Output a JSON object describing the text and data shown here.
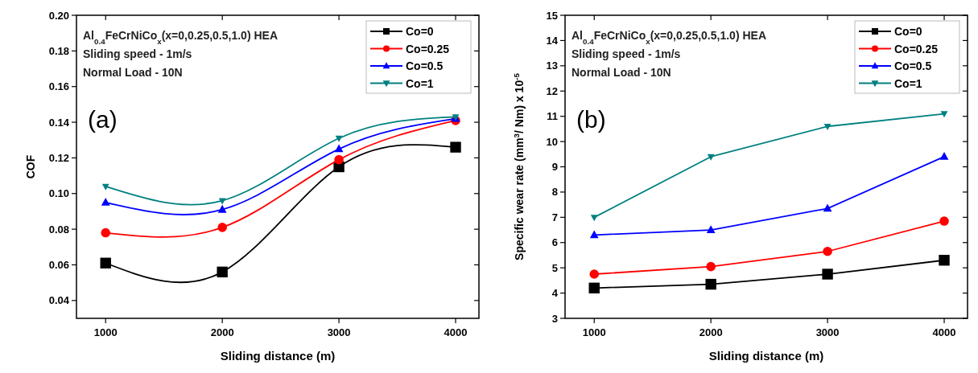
{
  "chart_data": [
    {
      "type": "line",
      "xlabel": "Sliding distance (m)",
      "ylabel": "COF",
      "x": [
        1000,
        2000,
        3000,
        4000
      ],
      "xlim": [
        750,
        4200
      ],
      "xticks": [
        1000,
        2000,
        3000,
        4000
      ],
      "ylim": [
        0.03,
        0.2
      ],
      "yticks": [
        {
          "value": 0.04,
          "label": "0.04"
        },
        {
          "value": 0.06,
          "label": "0.06"
        },
        {
          "value": 0.08,
          "label": "0.08"
        },
        {
          "value": 0.1,
          "label": "0.10"
        },
        {
          "value": 0.12,
          "label": "0.12"
        },
        {
          "value": 0.14,
          "label": "0.14"
        },
        {
          "value": 0.16,
          "label": "0.16"
        },
        {
          "value": 0.18,
          "label": "0.18"
        },
        {
          "value": 0.2,
          "label": "0.20"
        }
      ],
      "grid": false,
      "legend": "top right",
      "line_style": "solid",
      "series": [
        {
          "name": "Co=0",
          "color": "#000000",
          "marker": "square",
          "values": [
            0.061,
            0.056,
            0.115,
            0.126
          ]
        },
        {
          "name": "Co=0.25",
          "color": "#ff0000",
          "marker": "circle",
          "values": [
            0.078,
            0.081,
            0.119,
            0.141
          ]
        },
        {
          "name": "Co=0.5",
          "color": "#0000ff",
          "marker": "triangle",
          "values": [
            0.095,
            0.091,
            0.125,
            0.142
          ]
        },
        {
          "name": "Co=1",
          "color": "#008080",
          "marker": "triangle-down",
          "values": [
            0.104,
            0.096,
            0.131,
            0.143
          ]
        }
      ],
      "annotations": [
        "Al$_{0.4}$FeCrNiCo$_{x}$(x=0,0.25,0.5,1.0) HEA",
        "Sliding speed - 1m/s",
        "Normal Load - 10N",
        "(a)"
      ]
    },
    {
      "type": "line",
      "xlabel": "Sliding distance (m)",
      "ylabel": "Specific wear rate (mm$^{3}$/ Nm) x 10$^{-5}$",
      "x": [
        1000,
        2000,
        3000,
        4000
      ],
      "xlim": [
        750,
        4200
      ],
      "xticks": [
        1000,
        2000,
        3000,
        4000
      ],
      "ylim": [
        3,
        15
      ],
      "yticks": [
        3,
        4,
        5,
        6,
        7,
        8,
        9,
        10,
        11,
        12,
        13,
        14,
        15
      ],
      "grid": false,
      "legend": "top right",
      "line_style": "solid",
      "series": [
        {
          "name": "Co=0",
          "color": "#000000",
          "marker": "square",
          "values": [
            4.2,
            4.35,
            4.75,
            5.3
          ]
        },
        {
          "name": "Co=0.25",
          "color": "#ff0000",
          "marker": "circle",
          "values": [
            4.75,
            5.05,
            5.65,
            6.85
          ]
        },
        {
          "name": "Co=0.5",
          "color": "#0000ff",
          "marker": "triangle",
          "values": [
            6.3,
            6.5,
            7.35,
            9.4
          ]
        },
        {
          "name": "Co=1",
          "color": "#008080",
          "marker": "triangle-down",
          "values": [
            7.0,
            9.4,
            10.6,
            11.1
          ]
        }
      ],
      "annotations": [
        "Al$_{0.4}$FeCrNiCo$_{x}$(x=0,0.25,0.5,1.0) HEA",
        "Sliding speed - 1m/s",
        "Normal Load - 10N",
        "(b)"
      ]
    }
  ]
}
